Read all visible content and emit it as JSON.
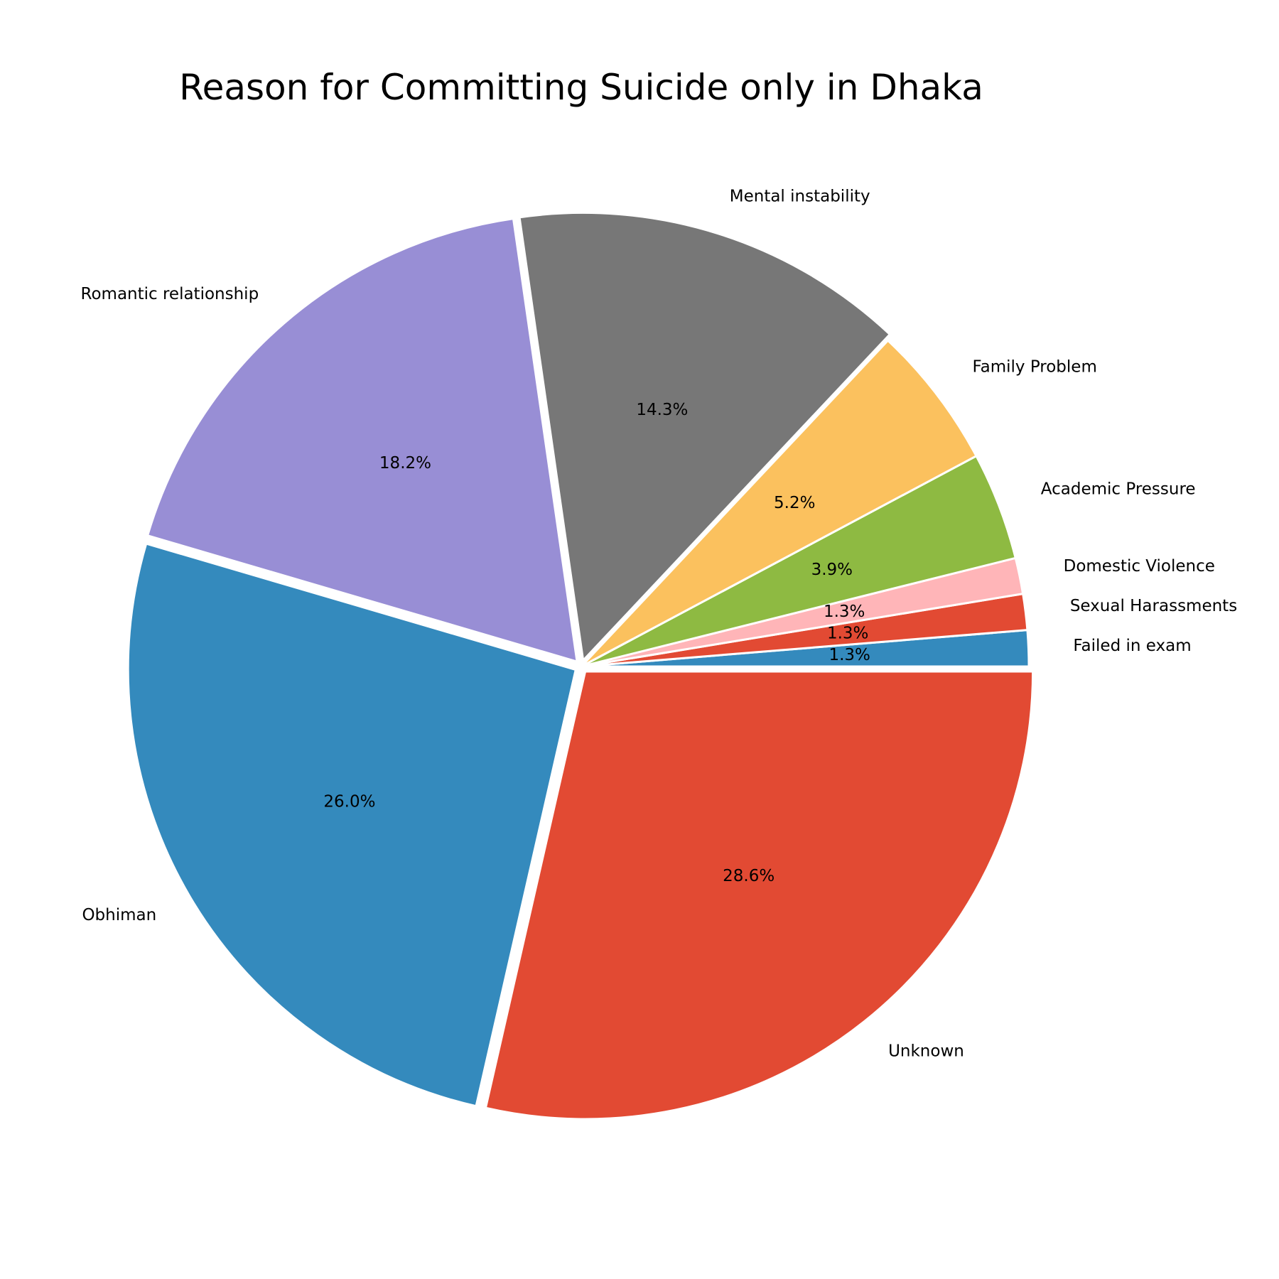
{
  "chart_data": {
    "type": "pie",
    "title": "Reason for Committing Suicide only in Dhaka",
    "labels": [
      "Failed in exam",
      "Sexual Harassments",
      "Domestic Violence",
      "Academic Pressure",
      "Family Problem",
      "Mental instability",
      "Romantic relationship",
      "Obhiman",
      "Unknown"
    ],
    "values": [
      1.3,
      1.3,
      1.3,
      3.9,
      5.2,
      14.3,
      18.2,
      26.0,
      28.6
    ],
    "pct_labels": [
      "1.3%",
      "1.3%",
      "1.3%",
      "3.9%",
      "5.2%",
      "14.3%",
      "18.2%",
      "26.0%",
      "28.6%"
    ],
    "colors": [
      "#348abd",
      "#e24a33",
      "#ffb5b8",
      "#8eba42",
      "#fbc15e",
      "#777777",
      "#988ed5",
      "#348abd",
      "#e24a33"
    ],
    "start_angle": 0,
    "direction": "clockwise",
    "legend": "none"
  }
}
